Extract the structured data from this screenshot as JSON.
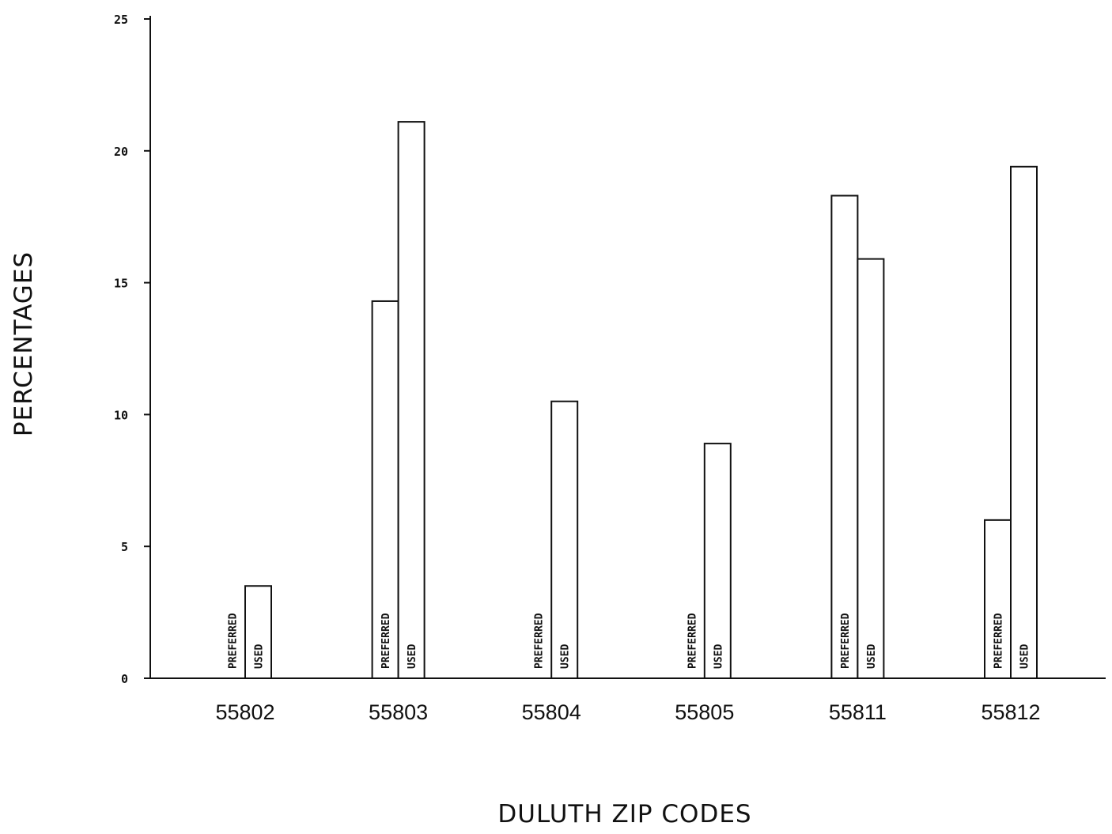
{
  "chart_data": {
    "type": "bar",
    "categories": [
      "55802",
      "55803",
      "55804",
      "55805",
      "55811",
      "55812"
    ],
    "series": [
      {
        "name": "PREFERRED",
        "values": [
          0,
          14.3,
          0,
          0,
          18.3,
          6.0
        ]
      },
      {
        "name": "USED",
        "values": [
          3.5,
          21.1,
          10.5,
          8.9,
          15.9,
          19.4
        ]
      }
    ],
    "series_labels_on_bars": [
      "PREFERRED",
      "USED"
    ],
    "title": "",
    "xlabel": "DULUTH ZIP CODES",
    "ylabel": "PERCENTAGES",
    "ylim": [
      0,
      25
    ],
    "yticks": [
      0,
      5,
      10,
      15,
      20,
      25
    ],
    "ytick_labels": [
      "0",
      "5",
      "10",
      "15",
      "20",
      "25"
    ],
    "grid": false,
    "legend": "none",
    "colors": {
      "bar_fill": "#ffffff",
      "stroke": "#111111"
    }
  }
}
